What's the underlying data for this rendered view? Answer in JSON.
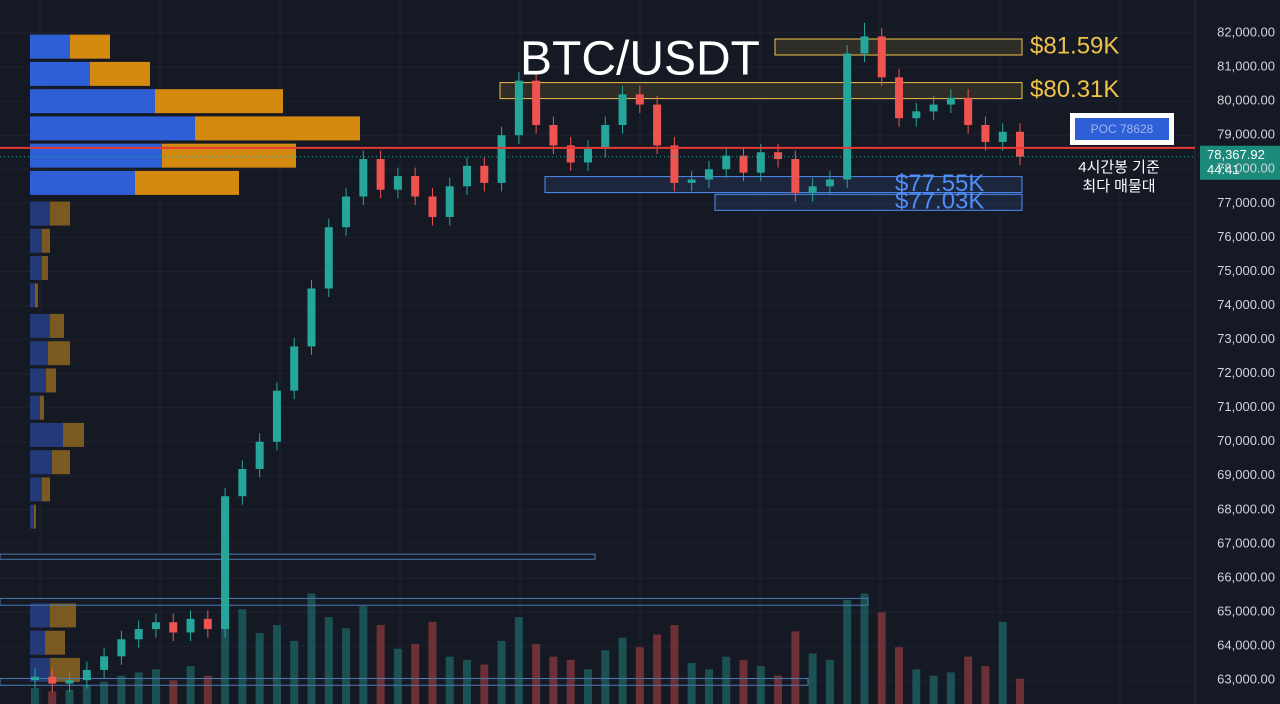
{
  "chart_data": {
    "type": "candlestick",
    "title": "BTC/USDT",
    "ylim": [
      62300,
      82970
    ],
    "yticks": [
      {
        "value": 63000,
        "label": "63,000.00"
      },
      {
        "value": 64000,
        "label": "64,000.00"
      },
      {
        "value": 65000,
        "label": "65,000.00"
      },
      {
        "value": 66000,
        "label": "66,000.00"
      },
      {
        "value": 67000,
        "label": "67,000.00"
      },
      {
        "value": 68000,
        "label": "68,000.00"
      },
      {
        "value": 69000,
        "label": "69,000.00"
      },
      {
        "value": 70000,
        "label": "70,000.00"
      },
      {
        "value": 71000,
        "label": "71,000.00"
      },
      {
        "value": 72000,
        "label": "72,000.00"
      },
      {
        "value": 73000,
        "label": "73,000.00"
      },
      {
        "value": 74000,
        "label": "74,000.00"
      },
      {
        "value": 75000,
        "label": "75,000.00"
      },
      {
        "value": 76000,
        "label": "76,000.00"
      },
      {
        "value": 77000,
        "label": "77,000.00"
      },
      {
        "value": 78000,
        "label": "78,000.00"
      },
      {
        "value": 79000,
        "label": "79,000.00"
      },
      {
        "value": 80000,
        "label": "80,000.00"
      },
      {
        "value": 81000,
        "label": "81,000.00"
      },
      {
        "value": 82000,
        "label": "82,000.00"
      }
    ],
    "grid": true,
    "up_color": "#26a69a",
    "down_color": "#ef5350",
    "open": [
      63000,
      63100,
      62900,
      63000,
      63300,
      63700,
      64200,
      64500,
      64700,
      64400,
      64800,
      64500,
      68400,
      69200,
      70000,
      71500,
      72800,
      74500,
      76300,
      77200,
      78300,
      77400,
      77800,
      77200,
      76600,
      77500,
      78100,
      77600,
      79000,
      80600,
      79300,
      78700,
      78200,
      78600,
      79300,
      80200,
      79900,
      78700,
      77600,
      77700,
      78000,
      78400,
      77900,
      78500,
      78300,
      77300,
      77500,
      77700,
      81400,
      81900,
      80700,
      79500,
      79700,
      79900,
      80100,
      79300,
      78800,
      79100
    ],
    "high": [
      63350,
      63350,
      63250,
      63550,
      63950,
      64450,
      64750,
      64950,
      64950,
      65050,
      65050,
      68650,
      69450,
      70250,
      71750,
      73050,
      74750,
      76550,
      77450,
      78550,
      78550,
      78050,
      78050,
      77450,
      77750,
      78350,
      78350,
      79250,
      80850,
      80850,
      79550,
      78950,
      78850,
      79550,
      80450,
      80450,
      80150,
      78950,
      77950,
      78250,
      78650,
      78650,
      78750,
      78750,
      78550,
      77750,
      77950,
      81650,
      82300,
      82150,
      80950,
      79950,
      80150,
      80350,
      80350,
      79550,
      79350,
      79350
    ],
    "low": [
      62750,
      62650,
      62650,
      62750,
      63050,
      63450,
      63950,
      64250,
      64150,
      64150,
      64250,
      64250,
      68150,
      68950,
      69750,
      71250,
      72550,
      74250,
      76050,
      76950,
      77150,
      77150,
      76950,
      76350,
      76350,
      77250,
      77350,
      77350,
      78750,
      79050,
      78450,
      77950,
      77950,
      78350,
      79050,
      79650,
      78450,
      77350,
      77350,
      77450,
      77750,
      77650,
      77650,
      78050,
      77050,
      77050,
      77250,
      77450,
      81150,
      80450,
      79250,
      79250,
      79450,
      79650,
      79050,
      78550,
      78550,
      78118
    ],
    "close": [
      63100,
      62900,
      63000,
      63300,
      63700,
      64200,
      64500,
      64700,
      64400,
      64800,
      64500,
      68400,
      69200,
      70000,
      71500,
      72800,
      74500,
      76300,
      77200,
      78300,
      77400,
      77800,
      77200,
      76600,
      77500,
      78100,
      77600,
      79000,
      80600,
      79300,
      78700,
      78200,
      78600,
      79300,
      80200,
      79900,
      78700,
      77600,
      77700,
      78000,
      78400,
      77900,
      78500,
      78300,
      77300,
      77500,
      77700,
      81400,
      81900,
      80700,
      79500,
      79700,
      79900,
      80100,
      79300,
      78800,
      79100,
      78368
    ],
    "volume": [
      10,
      8,
      9,
      12,
      14,
      18,
      20,
      22,
      15,
      24,
      18,
      95,
      60,
      45,
      50,
      40,
      70,
      55,
      48,
      62,
      50,
      35,
      38,
      52,
      30,
      28,
      25,
      40,
      55,
      38,
      30,
      28,
      22,
      34,
      42,
      36,
      44,
      50,
      26,
      22,
      30,
      28,
      24,
      18,
      46,
      32,
      28,
      66,
      70,
      58,
      36,
      22,
      18,
      20,
      30,
      24,
      52,
      16
    ],
    "volume_profile": {
      "price": [
        81600,
        80800,
        80000,
        79200,
        78400,
        77600,
        76700,
        75900,
        75100,
        74300,
        73400,
        72600,
        71800,
        71000,
        70200,
        69400,
        68600,
        67800,
        64900,
        64100,
        63300
      ],
      "buy": [
        40,
        60,
        125,
        165,
        132,
        105,
        20,
        12,
        12,
        5,
        20,
        18,
        16,
        10,
        33,
        22,
        12,
        4,
        20,
        15,
        20
      ],
      "sell": [
        40,
        60,
        128,
        165,
        134,
        104,
        20,
        8,
        6,
        3,
        14,
        22,
        10,
        4,
        21,
        18,
        8,
        2,
        26,
        20,
        30
      ]
    },
    "annotations": [
      {
        "label": "$81.59K",
        "value": 81590,
        "color": "#f0c24a"
      },
      {
        "label": "$80.31K",
        "value": 80310,
        "color": "#f0c24a"
      },
      {
        "label": "$77.55K",
        "value": 77550,
        "color": "#4f8ef7"
      },
      {
        "label": "$77.03K",
        "value": 77030,
        "color": "#4f8ef7"
      }
    ],
    "zones": [
      {
        "low": 66550,
        "high": 66700
      },
      {
        "low": 65200,
        "high": 65400
      },
      {
        "low": 62850,
        "high": 63050
      }
    ],
    "poc": {
      "value": 78628,
      "label": "POC 78628"
    },
    "poc_note": [
      "4시간봉 기준",
      "최다 매물대"
    ],
    "current_price": {
      "value": 78367.92,
      "label": "78,367.92"
    },
    "countdown": "44:41"
  }
}
